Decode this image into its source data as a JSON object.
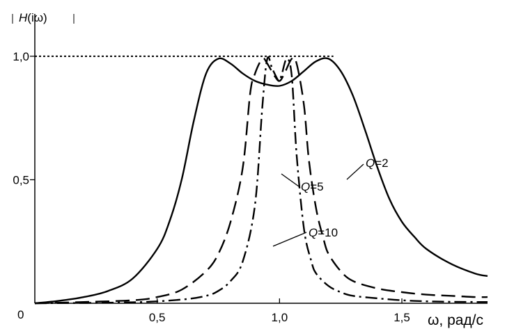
{
  "chart_data": {
    "type": "line",
    "ylabel": {
      "pre": "H",
      "post": "(iω)"
    },
    "xlabel": "ω, рад/с",
    "xlim": [
      0,
      1.85
    ],
    "ylim": [
      0,
      1.07
    ],
    "origin_label": "0",
    "x_ticks": [
      {
        "value": 0.5,
        "label": "0,5"
      },
      {
        "value": 1.0,
        "label": "1,0"
      },
      {
        "value": 1.5,
        "label": "1,5"
      }
    ],
    "y_ticks": [
      {
        "value": 0.5,
        "label": "0,5"
      },
      {
        "value": 1.0,
        "label": "1,0"
      }
    ],
    "reference_line": {
      "y": 1.0,
      "x_range": [
        0,
        1.22
      ],
      "style": "dotted"
    },
    "grid": false,
    "series": [
      {
        "name": "Q=2",
        "q_label": "Q",
        "q_value": "=2",
        "style": "solid",
        "x": [
          0.0,
          0.1,
          0.2,
          0.3,
          0.4,
          0.5,
          0.55,
          0.6,
          0.65,
          0.7,
          0.75,
          0.8,
          0.85,
          0.9,
          0.95,
          1.0,
          1.05,
          1.1,
          1.15,
          1.2,
          1.25,
          1.3,
          1.35,
          1.4,
          1.45,
          1.5,
          1.55,
          1.6,
          1.7,
          1.8,
          1.85
        ],
        "y": [
          0.0,
          0.01,
          0.025,
          0.05,
          0.1,
          0.22,
          0.33,
          0.5,
          0.74,
          0.93,
          0.99,
          0.97,
          0.93,
          0.9,
          0.885,
          0.88,
          0.9,
          0.94,
          0.98,
          0.99,
          0.94,
          0.84,
          0.7,
          0.55,
          0.42,
          0.33,
          0.27,
          0.22,
          0.16,
          0.12,
          0.11
        ]
      },
      {
        "name": "Q=5",
        "q_label": "Q",
        "q_value": "=5",
        "style": "dashed",
        "x": [
          0.0,
          0.2,
          0.4,
          0.5,
          0.6,
          0.7,
          0.75,
          0.8,
          0.85,
          0.88,
          0.9,
          0.93,
          0.95,
          0.98,
          1.0,
          1.02,
          1.05,
          1.07,
          1.1,
          1.12,
          1.15,
          1.18,
          1.2,
          1.25,
          1.3,
          1.4,
          1.5,
          1.6,
          1.7,
          1.8,
          1.85
        ],
        "y": [
          0.0,
          0.005,
          0.012,
          0.025,
          0.055,
          0.13,
          0.2,
          0.33,
          0.55,
          0.85,
          0.93,
          0.99,
          0.97,
          0.92,
          0.9,
          0.93,
          0.99,
          0.97,
          0.8,
          0.58,
          0.38,
          0.26,
          0.2,
          0.13,
          0.09,
          0.06,
          0.045,
          0.035,
          0.03,
          0.025,
          0.025
        ]
      },
      {
        "name": "Q=10",
        "q_label": "Q",
        "q_value": "=10",
        "style": "dashdot",
        "x": [
          0.0,
          0.4,
          0.6,
          0.7,
          0.75,
          0.8,
          0.85,
          0.9,
          0.93,
          0.95,
          0.97,
          0.99,
          1.0,
          1.01,
          1.03,
          1.05,
          1.07,
          1.1,
          1.13,
          1.15,
          1.2,
          1.25,
          1.3,
          1.4,
          1.5,
          1.6,
          1.7,
          1.85
        ],
        "y": [
          0.0,
          0.004,
          0.015,
          0.03,
          0.05,
          0.09,
          0.17,
          0.4,
          0.8,
          0.99,
          0.95,
          0.91,
          0.9,
          0.93,
          0.99,
          0.92,
          0.6,
          0.3,
          0.17,
          0.12,
          0.07,
          0.045,
          0.03,
          0.02,
          0.012,
          0.008,
          0.006,
          0.005
        ]
      }
    ]
  }
}
